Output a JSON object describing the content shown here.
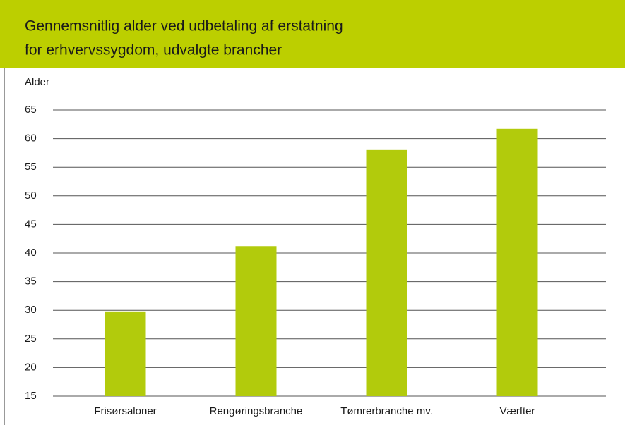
{
  "chart_data": {
    "type": "bar",
    "title": [
      "Gennemsnitlig alder ved udbetaling af erstatning",
      "for erhvervssygdom, udvalgte brancher"
    ],
    "y_label": "Alder",
    "categories": [
      "Frisørsaloner",
      "Rengøringsbranche",
      "Tømrerbranche mv.",
      "Værfter"
    ],
    "values": [
      29.8,
      41.2,
      58,
      61.7
    ],
    "color": "#b2cb0c",
    "ylim": [
      15,
      65
    ],
    "yticks": [
      15,
      20,
      25,
      30,
      35,
      40,
      45,
      50,
      55,
      60,
      65
    ],
    "grid": true
  }
}
